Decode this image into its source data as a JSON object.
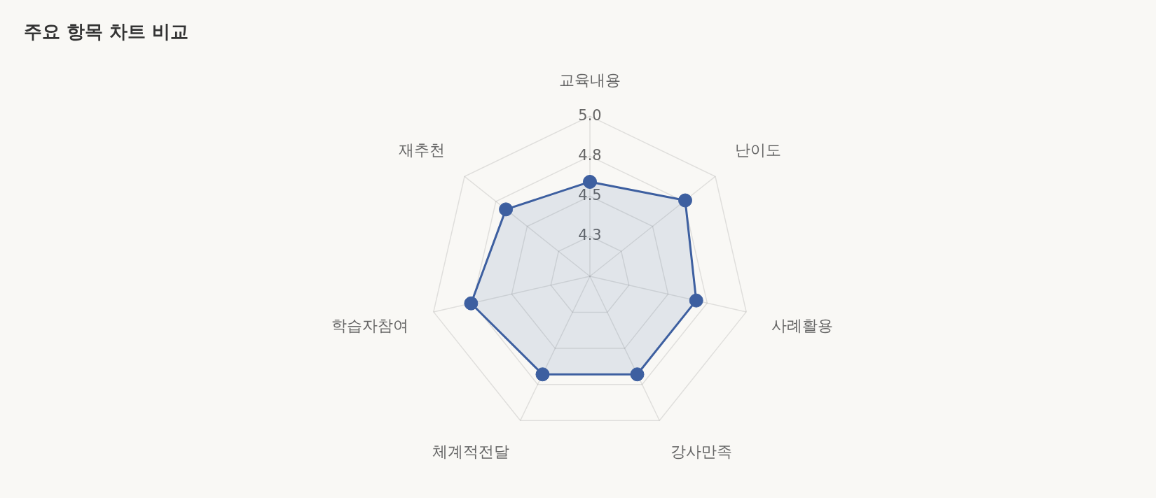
{
  "chart_data": {
    "type": "radar",
    "title": "주요 항목 차트 비교",
    "categories": [
      "교육내용",
      "난이도",
      "사례활용",
      "강사만족",
      "체계적전달",
      "학습자참여",
      "재추천"
    ],
    "series": [
      {
        "color": "#3d5fa0",
        "values": [
          4.59,
          4.76,
          4.68,
          4.68,
          4.68,
          4.76,
          4.67
        ]
      }
    ],
    "ylim": [
      4.0,
      5.0
    ],
    "yticks": [
      {
        "value": 4.25,
        "label": "4.3"
      },
      4.5,
      {
        "value": 4.75,
        "label": "4.8"
      },
      {
        "value": 5.0,
        "label": "5.0"
      }
    ],
    "grid": true,
    "marker": "circle"
  }
}
